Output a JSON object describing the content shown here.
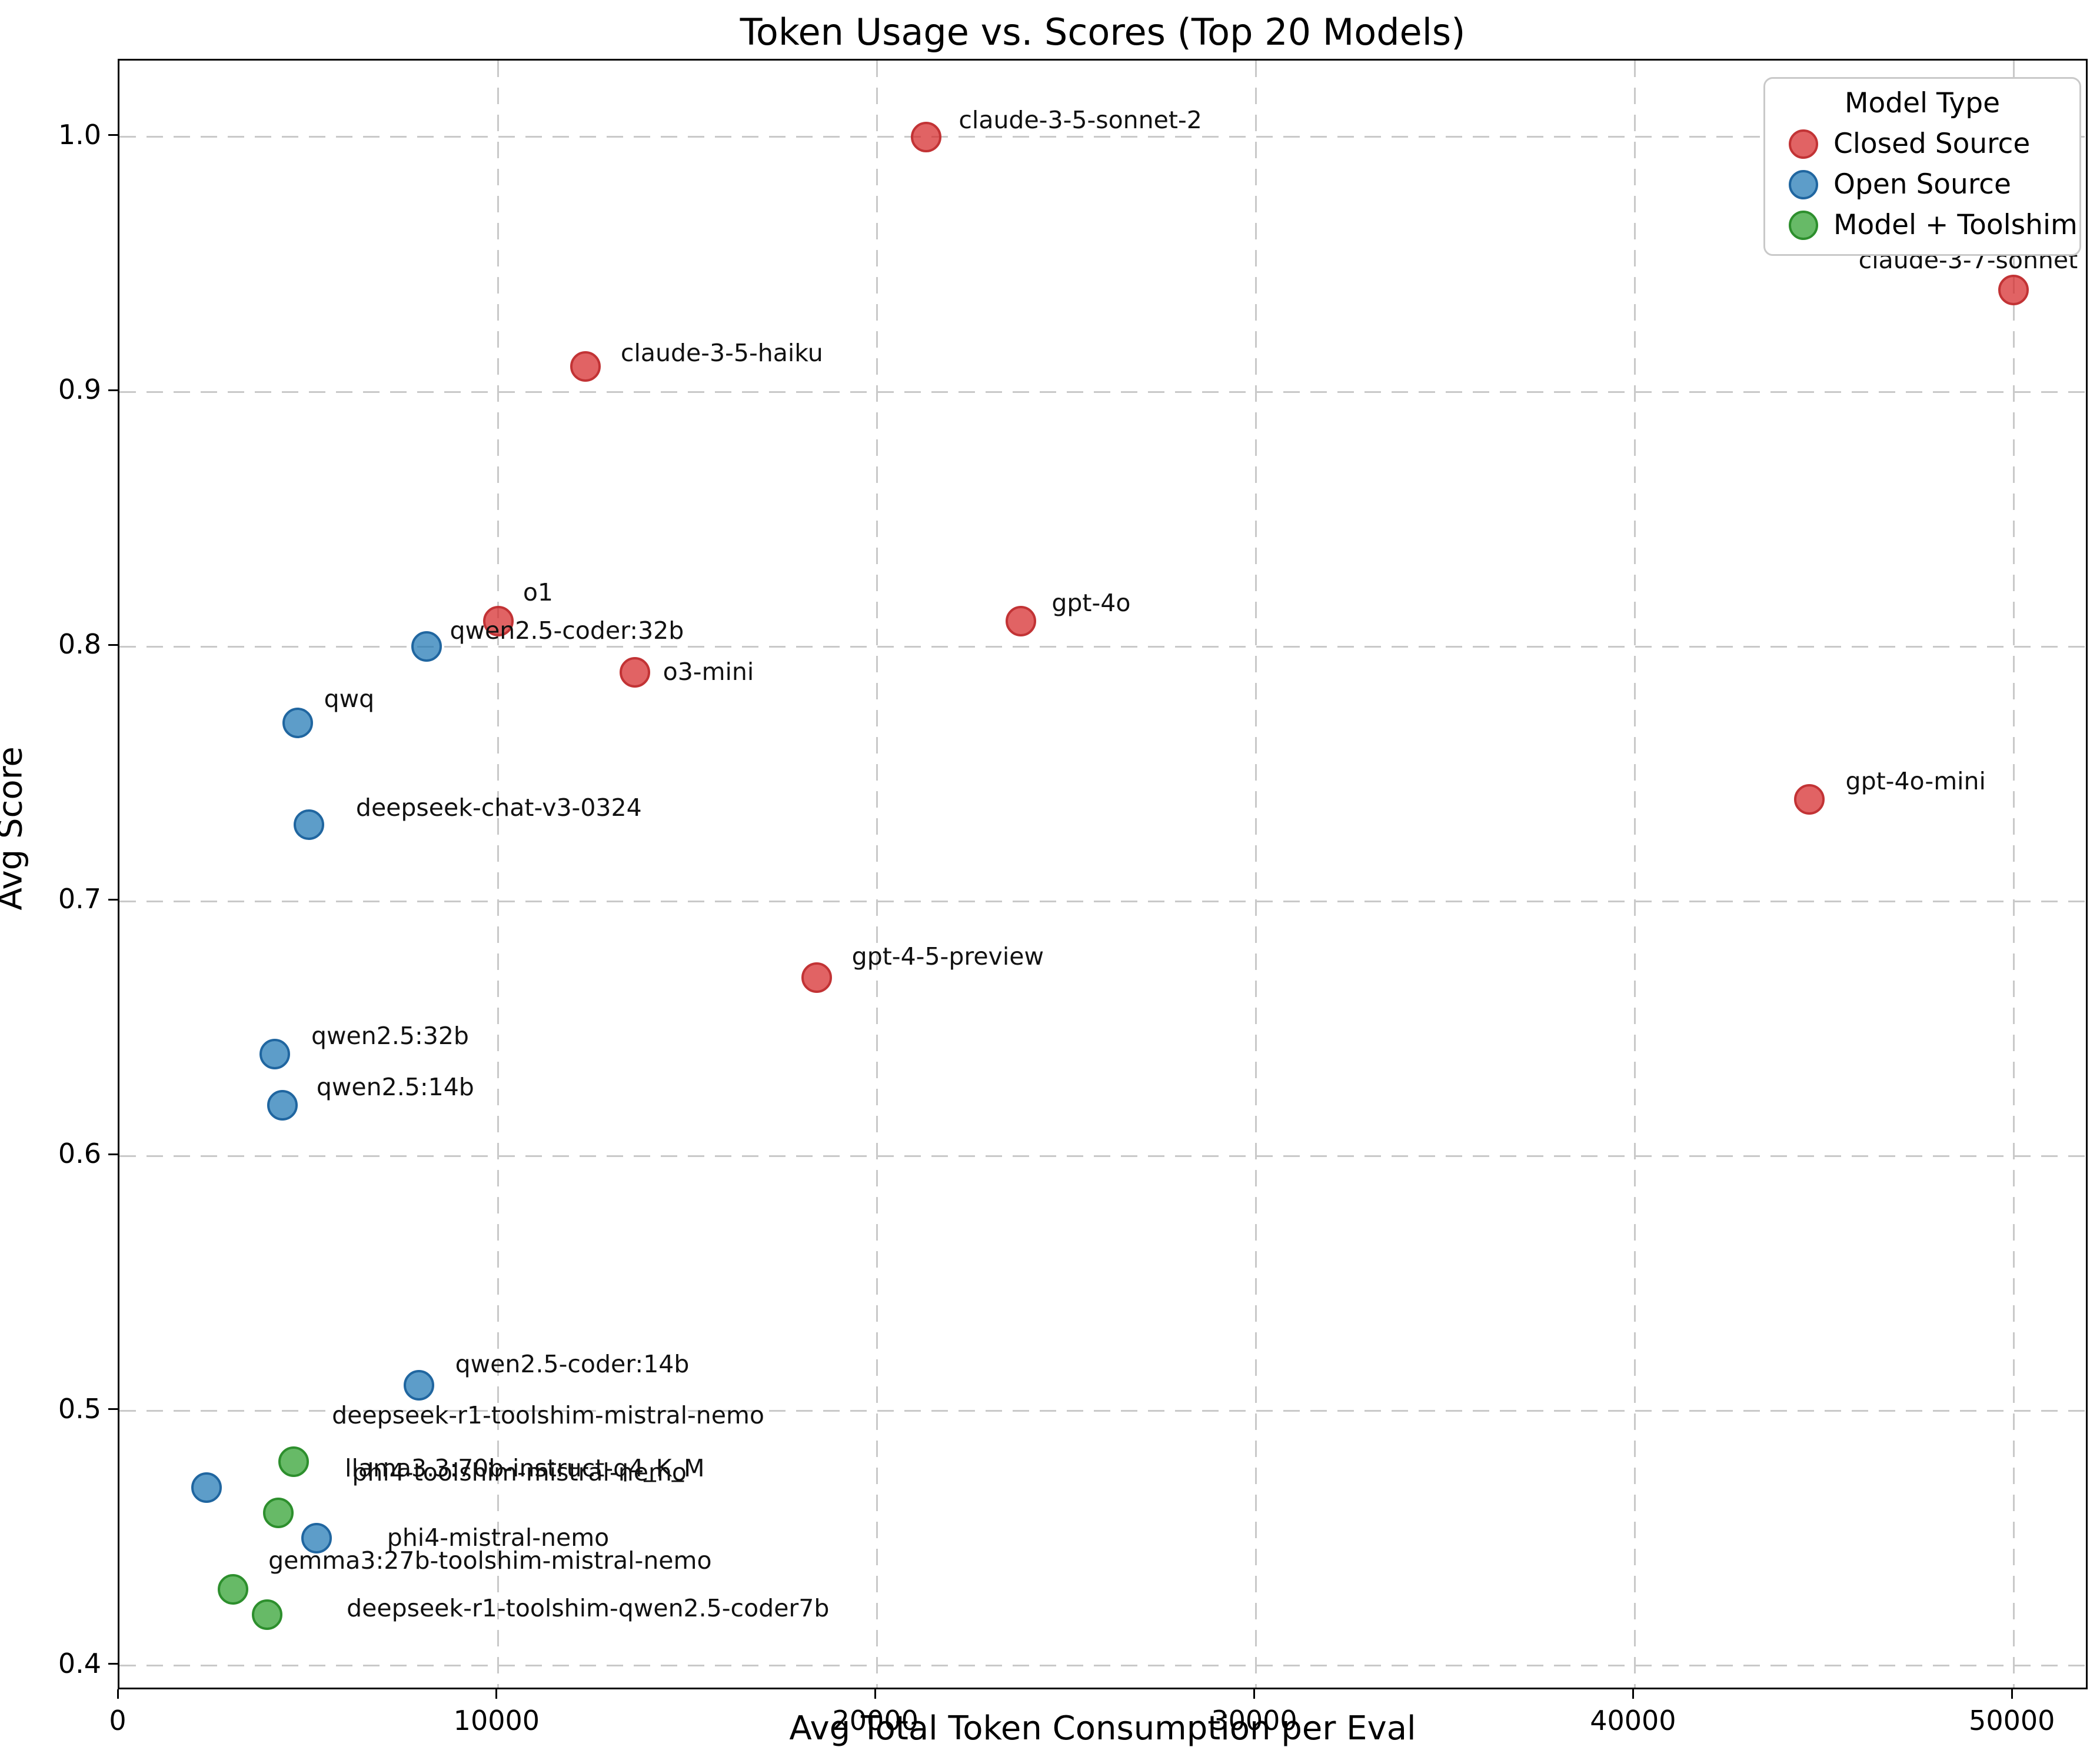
{
  "title": "Token Usage vs. Scores (Top 20 Models)",
  "axes": {
    "xlabel": "Avg Total Token Consumption per Eval",
    "ylabel": "Avg Score",
    "xlim": [
      0,
      52000
    ],
    "ylim": [
      0.39,
      1.03
    ],
    "x_ticks": [
      0,
      10000,
      20000,
      30000,
      40000,
      50000
    ],
    "y_ticks": [
      0.4,
      0.5,
      0.6,
      0.7,
      0.8,
      0.9,
      1.0
    ],
    "grid": "dashed"
  },
  "legend": {
    "title": "Model Type",
    "items": [
      {
        "label": "Closed Source",
        "fill": "rgba(214,39,40,0.72)",
        "edge": "#c23335"
      },
      {
        "label": "Open Source",
        "fill": "rgba(31,119,180,0.72)",
        "edge": "#2066a0"
      },
      {
        "label": "Model + Toolshim",
        "fill": "rgba(44,160,44,0.72)",
        "edge": "#2d8f2d"
      }
    ]
  },
  "chart_data": {
    "type": "scatter",
    "title": "Token Usage vs. Scores (Top 20 Models)",
    "xlabel": "Avg Total Token Consumption per Eval",
    "ylabel": "Avg Score",
    "xlim": [
      0,
      52000
    ],
    "ylim": [
      0.39,
      1.03
    ],
    "legend_position": "upper right",
    "series": [
      {
        "name": "Closed Source",
        "fill": "rgba(214,39,40,0.72)",
        "edge": "#c23335",
        "points": [
          {
            "label": "claude-3-5-sonnet-2",
            "x": 21300,
            "y": 1.0,
            "dx": 55,
            "dy": -8
          },
          {
            "label": "claude-3-7-sonnet",
            "x": 50000,
            "y": 0.94,
            "dx": 115,
            "dy": -30,
            "anchor": "right"
          },
          {
            "label": "claude-3-5-haiku",
            "x": 12300,
            "y": 0.91,
            "dx": 60,
            "dy": -2
          },
          {
            "label": "o1",
            "x": 10000,
            "y": 0.81,
            "dx": 42,
            "dy": -28
          },
          {
            "label": "gpt-4o",
            "x": 23800,
            "y": 0.81,
            "dx": 52,
            "dy": -10
          },
          {
            "label": "o3-mini",
            "x": 13600,
            "y": 0.79,
            "dx": 48,
            "dy": 20
          },
          {
            "label": "gpt-4o-mini",
            "x": 44600,
            "y": 0.74,
            "dx": 62,
            "dy": -10
          },
          {
            "label": "gpt-4-5-preview",
            "x": 18400,
            "y": 0.67,
            "dx": 60,
            "dy": -15
          }
        ]
      },
      {
        "name": "Open Source",
        "fill": "rgba(31,119,180,0.72)",
        "edge": "#2066a0",
        "points": [
          {
            "label": "qwen2.5-coder:32b",
            "x": 8100,
            "y": 0.8,
            "dx": 40,
            "dy": -6
          },
          {
            "label": "qwq",
            "x": 4700,
            "y": 0.77,
            "dx": 45,
            "dy": -20
          },
          {
            "label": "deepseek-chat-v3-0324",
            "x": 5000,
            "y": 0.73,
            "dx": 80,
            "dy": -8
          },
          {
            "label": "qwen2.5:32b",
            "x": 4100,
            "y": 0.64,
            "dx": 62,
            "dy": -10
          },
          {
            "label": "qwen2.5:14b",
            "x": 4300,
            "y": 0.62,
            "dx": 58,
            "dy": -10
          },
          {
            "label": "qwen2.5-coder:14b",
            "x": 7900,
            "y": 0.51,
            "dx": 62,
            "dy": -15
          },
          {
            "label": "llama3.3:70b-instruct-q4_K_M",
            "x": 2300,
            "y": 0.47,
            "dx": 235,
            "dy": -12
          },
          {
            "label": "phi4-mistral-nemo",
            "x": 5200,
            "y": 0.45,
            "dx": 120,
            "dy": 20
          }
        ]
      },
      {
        "name": "Model + Toolshim",
        "fill": "rgba(44,160,44,0.72)",
        "edge": "#2d8f2d",
        "points": [
          {
            "label": "deepseek-r1-toolshim-mistral-nemo",
            "x": 4600,
            "y": 0.48,
            "dx": 65,
            "dy": -58
          },
          {
            "label": "phi4-toolshim-mistral-nemo",
            "x": 4200,
            "y": 0.46,
            "dx": 125,
            "dy": -48
          },
          {
            "label": "gemma3:27b-toolshim-mistral-nemo",
            "x": 3000,
            "y": 0.43,
            "dx": 60,
            "dy": -28
          },
          {
            "label": "deepseek-r1-toolshim-qwen2.5-coder7b",
            "x": 3900,
            "y": 0.42,
            "dx": 135,
            "dy": 10
          }
        ]
      }
    ]
  }
}
